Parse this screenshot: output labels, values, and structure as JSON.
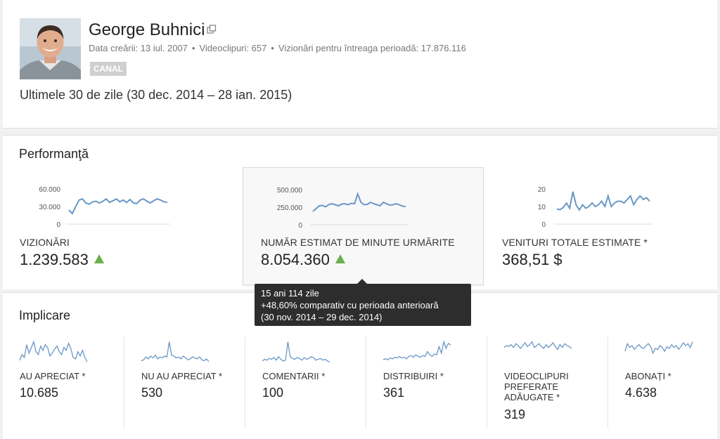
{
  "channel": {
    "name": "George Buhnici",
    "meta": {
      "created": "Data creării: 13 iul. 2007",
      "videos": "Videoclipuri: 657",
      "views": "Vizionări pentru întreaga perioadă: 17.876.116"
    },
    "badge": "CANAL",
    "icons": {
      "external": "external-link-icon",
      "avatar": "avatar"
    }
  },
  "period": "Ultimele 30 de zile (30 dec. 2014 – 28 ian. 2015)",
  "performance": {
    "title": "Performanţă",
    "cards": [
      {
        "label": "VIZIONĂRI",
        "value": "1.239.583",
        "trend": "up",
        "selected": false,
        "yticks": [
          "60.000",
          "30.000",
          "0"
        ],
        "ymax": 60000,
        "series": [
          24000,
          18000,
          30000,
          41000,
          43000,
          36000,
          34000,
          38000,
          39000,
          36000,
          39000,
          43000,
          37000,
          40000,
          43000,
          38000,
          41000,
          37000,
          42000,
          36000,
          35000,
          41000,
          43000,
          39000,
          36000,
          40000,
          43000,
          41000,
          38000,
          37000
        ]
      },
      {
        "label": "NUMĂR ESTIMAT DE MINUTE URMĂRITE",
        "value": "8.054.360",
        "trend": "up",
        "selected": true,
        "yticks": [
          "500.000",
          "250.000",
          "0"
        ],
        "ymax": 500000,
        "series": [
          190000,
          230000,
          270000,
          275000,
          255000,
          290000,
          300000,
          285000,
          270000,
          295000,
          300000,
          285000,
          305000,
          300000,
          440000,
          320000,
          285000,
          290000,
          320000,
          300000,
          285000,
          270000,
          320000,
          300000,
          280000,
          285000,
          300000,
          285000,
          265000,
          260000
        ]
      },
      {
        "label": "VENITURI TOTALE ESTIMATE *",
        "value": "368,51 $",
        "trend": "none",
        "selected": false,
        "yticks": [
          "20",
          "10",
          "0"
        ],
        "ymax": 20,
        "series": [
          8.5,
          8.2,
          9.5,
          12,
          9,
          18.5,
          11,
          8,
          11,
          9,
          10,
          12,
          10,
          11,
          13,
          10,
          16,
          10,
          12,
          13,
          13,
          12,
          14,
          16,
          11,
          14,
          16,
          14,
          15,
          13
        ]
      }
    ]
  },
  "tooltip": {
    "line1": "15 ani 114 zile",
    "line2": "+48,60% comparativ cu perioada anterioară",
    "line3": "(30 nov. 2014 – 29 dec. 2014)"
  },
  "engagement": {
    "title": "Implicare",
    "cards": [
      {
        "label": "AU APRECIAT *",
        "value": "10.685",
        "series": [
          3,
          7,
          5,
          14,
          8,
          12,
          16,
          9,
          7,
          13,
          10,
          14,
          12,
          6,
          8,
          11,
          13,
          9,
          7,
          12,
          10,
          15,
          11,
          5,
          4,
          9,
          6,
          10,
          5,
          2
        ]
      },
      {
        "label": "NU AU APRECIAT *",
        "value": "530",
        "series": [
          4,
          5,
          8,
          6,
          9,
          7,
          10,
          6,
          8,
          7,
          9,
          8,
          24,
          10,
          9,
          7,
          8,
          6,
          9,
          7,
          5,
          6,
          8,
          7,
          6,
          8,
          5,
          4,
          6,
          3
        ]
      },
      {
        "label": "COMENTARII *",
        "value": "100",
        "series": [
          4,
          6,
          5,
          7,
          6,
          8,
          5,
          9,
          6,
          4,
          5,
          26,
          9,
          7,
          6,
          8,
          7,
          5,
          8,
          6,
          7,
          9,
          8,
          5,
          6,
          7,
          5,
          6,
          4,
          3
        ]
      },
      {
        "label": "DISTRIBUIRI *",
        "value": "361",
        "series": [
          6,
          7,
          6,
          8,
          7,
          9,
          8,
          10,
          8,
          9,
          7,
          10,
          11,
          9,
          12,
          10,
          9,
          11,
          10,
          16,
          12,
          10,
          13,
          12,
          22,
          14,
          28,
          20,
          26,
          24
        ]
      },
      {
        "label": "VIDEOCLIPURI PREFERATE ADĂUGATE *",
        "value": "319",
        "series": [
          18,
          20,
          19,
          21,
          18,
          22,
          20,
          17,
          20,
          23,
          19,
          21,
          24,
          18,
          20,
          22,
          19,
          17,
          21,
          18,
          20,
          23,
          19,
          16,
          21,
          18,
          22,
          20,
          19,
          17
        ]
      },
      {
        "label": "ABONAȚI *",
        "value": "4.638",
        "series": [
          14,
          22,
          18,
          20,
          16,
          19,
          21,
          18,
          17,
          20,
          22,
          19,
          12,
          17,
          16,
          20,
          18,
          14,
          19,
          17,
          21,
          18,
          20,
          16,
          19,
          23,
          20,
          22,
          18,
          24
        ]
      }
    ]
  },
  "colors": {
    "line": "#6a97c6",
    "grid": "#dddddd",
    "tooltip_bg": "#2d2d2d",
    "trend_up": "#6ab04c",
    "badge_bg": "#cfcfcf"
  }
}
